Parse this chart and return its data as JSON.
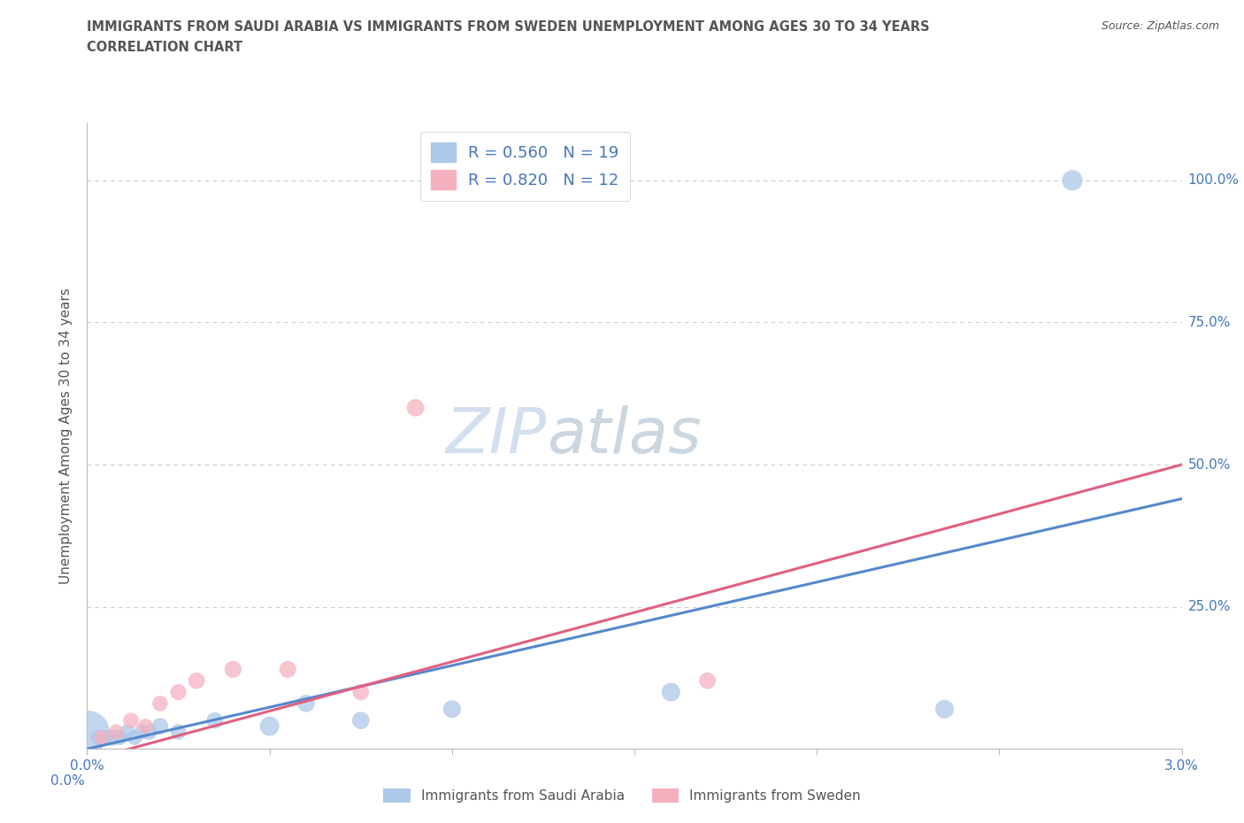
{
  "title_line1": "IMMIGRANTS FROM SAUDI ARABIA VS IMMIGRANTS FROM SWEDEN UNEMPLOYMENT AMONG AGES 30 TO 34 YEARS",
  "title_line2": "CORRELATION CHART",
  "source": "Source: ZipAtlas.com",
  "ylabel": "Unemployment Among Ages 30 to 34 years",
  "xlim": [
    0.0,
    0.03
  ],
  "ylim": [
    0.0,
    1.1
  ],
  "yticks_right": [
    0.25,
    0.5,
    0.75,
    1.0
  ],
  "ytick_labels_right": [
    "25.0%",
    "50.0%",
    "75.0%",
    "100.0%"
  ],
  "xticks": [
    0.0,
    0.005,
    0.01,
    0.015,
    0.02,
    0.025,
    0.03
  ],
  "xtick_labels": [
    "0.0%",
    "",
    "",
    "",
    "",
    "",
    "3.0%"
  ],
  "saudi_R": 0.56,
  "saudi_N": 19,
  "sweden_R": 0.82,
  "sweden_N": 12,
  "saudi_color": "#adc8e8",
  "sweden_color": "#f5b0c0",
  "saudi_line_color": "#5588cc",
  "sweden_line_color": "#e06080",
  "legend_text_color": "#4477bb",
  "title_color": "#555555",
  "axis_color": "#bbbbbb",
  "grid_color": "#cccccc",
  "watermark_color": "#d0dde8",
  "saudi_x": [
    3e-05,
    0.0003,
    0.0005,
    0.0007,
    0.0009,
    0.0011,
    0.0013,
    0.0015,
    0.0017,
    0.002,
    0.0025,
    0.0035,
    0.005,
    0.006,
    0.0075,
    0.01,
    0.016,
    0.0235,
    0.027
  ],
  "saudi_y": [
    0.03,
    0.02,
    0.02,
    0.02,
    0.02,
    0.03,
    0.02,
    0.03,
    0.03,
    0.04,
    0.03,
    0.05,
    0.04,
    0.08,
    0.05,
    0.07,
    0.1,
    0.07,
    1.0
  ],
  "saudi_size": [
    1200,
    150,
    150,
    180,
    150,
    150,
    150,
    160,
    170,
    180,
    160,
    180,
    250,
    200,
    200,
    210,
    230,
    230,
    280
  ],
  "sweden_x": [
    0.0004,
    0.0008,
    0.0012,
    0.0016,
    0.002,
    0.0025,
    0.003,
    0.004,
    0.0055,
    0.0075,
    0.009,
    0.017
  ],
  "sweden_y": [
    0.02,
    0.03,
    0.05,
    0.04,
    0.08,
    0.1,
    0.12,
    0.14,
    0.14,
    0.1,
    0.6,
    0.12
  ],
  "sweden_size": [
    150,
    150,
    160,
    150,
    160,
    170,
    180,
    190,
    190,
    180,
    200,
    185
  ],
  "saudi_trend_x": [
    0.0,
    0.03
  ],
  "saudi_trend_y": [
    0.0,
    0.44
  ],
  "sweden_trend_x": [
    0.0,
    0.03
  ],
  "sweden_trend_y": [
    -0.02,
    0.5
  ]
}
